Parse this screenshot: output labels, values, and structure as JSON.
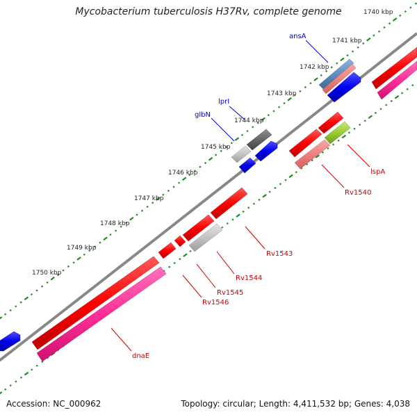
{
  "title": "Mycobacterium tuberculosis H37Rv, complete genome",
  "footer": {
    "accession": "Accession: NC_000962",
    "summary": "Topology: circular; Length: 4,411,532 bp; Genes: 4,038"
  },
  "ticks": [
    "1740 kbp",
    "1741 kbp",
    "1742 kbp",
    "1743 kbp",
    "1744 kbp",
    "1745 kbp",
    "1746 kbp",
    "1747 kbp",
    "1748 kbp",
    "1749 kbp",
    "1750 kbp"
  ],
  "gene_labels": [
    "ansA",
    "lprI",
    "glbN",
    "lspA",
    "Rv1540",
    "Rv1543",
    "Rv1544",
    "Rv1545",
    "Rv1546",
    "dnaE"
  ],
  "colors": {
    "backbone": "#888888",
    "ticks_outer": "#1e8c1e",
    "forward_gene": "#ff0000",
    "reverse_gene": "#0000ee",
    "cds_pink": "#ff3399",
    "light_red": "#f08080",
    "grey": "#c0c0c0",
    "dark_grey": "#666666",
    "green": "#99cc33",
    "steel_blue": "#5f8fbf",
    "label_blue": "#0000cc",
    "label_red": "#cc0000"
  }
}
